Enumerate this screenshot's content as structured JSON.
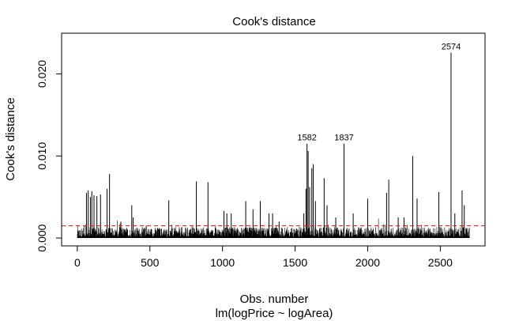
{
  "chart_data": {
    "type": "bar",
    "title": "Cook's distance",
    "xlabel": "Obs. number",
    "subtitle": "lm(logPrice ~ logArea)",
    "ylabel": "Cook's distance",
    "n_obs": 2700,
    "xlim": [
      0,
      2700
    ],
    "ylim": [
      0,
      0.024
    ],
    "x_ticks": [
      0,
      500,
      1000,
      1500,
      2000,
      2500
    ],
    "y_ticks": [
      0.0,
      0.01,
      0.02
    ],
    "y_tick_labels": [
      "0.000",
      "0.010",
      "0.020"
    ],
    "threshold": 0.00148,
    "threshold_color": "#ff0000",
    "bar_color": "#000000",
    "labeled_points": [
      {
        "x": 1582,
        "y": 0.0115,
        "label": "1582"
      },
      {
        "x": 1837,
        "y": 0.0115,
        "label": "1837"
      },
      {
        "x": 2574,
        "y": 0.0226,
        "label": "2574"
      }
    ],
    "spikes": [
      {
        "x": 63,
        "y": 0.0055
      },
      {
        "x": 75,
        "y": 0.0058
      },
      {
        "x": 90,
        "y": 0.005
      },
      {
        "x": 100,
        "y": 0.0057
      },
      {
        "x": 115,
        "y": 0.0052
      },
      {
        "x": 135,
        "y": 0.0051
      },
      {
        "x": 160,
        "y": 0.0053
      },
      {
        "x": 205,
        "y": 0.006
      },
      {
        "x": 222,
        "y": 0.0078
      },
      {
        "x": 300,
        "y": 0.002
      },
      {
        "x": 375,
        "y": 0.004
      },
      {
        "x": 385,
        "y": 0.0025
      },
      {
        "x": 475,
        "y": 0.0015
      },
      {
        "x": 630,
        "y": 0.0046
      },
      {
        "x": 820,
        "y": 0.0069
      },
      {
        "x": 900,
        "y": 0.0068
      },
      {
        "x": 1010,
        "y": 0.0033
      },
      {
        "x": 1030,
        "y": 0.003
      },
      {
        "x": 1060,
        "y": 0.003
      },
      {
        "x": 1160,
        "y": 0.0045
      },
      {
        "x": 1210,
        "y": 0.0035
      },
      {
        "x": 1260,
        "y": 0.0045
      },
      {
        "x": 1320,
        "y": 0.003
      },
      {
        "x": 1345,
        "y": 0.003
      },
      {
        "x": 1390,
        "y": 0.002
      },
      {
        "x": 1560,
        "y": 0.003
      },
      {
        "x": 1575,
        "y": 0.006
      },
      {
        "x": 1590,
        "y": 0.0106
      },
      {
        "x": 1600,
        "y": 0.0062
      },
      {
        "x": 1615,
        "y": 0.0085
      },
      {
        "x": 1625,
        "y": 0.009
      },
      {
        "x": 1640,
        "y": 0.0045
      },
      {
        "x": 1700,
        "y": 0.0073
      },
      {
        "x": 1720,
        "y": 0.004
      },
      {
        "x": 1780,
        "y": 0.0025
      },
      {
        "x": 1900,
        "y": 0.003
      },
      {
        "x": 2000,
        "y": 0.0048
      },
      {
        "x": 2130,
        "y": 0.0055
      },
      {
        "x": 2145,
        "y": 0.0071
      },
      {
        "x": 2210,
        "y": 0.0025
      },
      {
        "x": 2250,
        "y": 0.0025
      },
      {
        "x": 2310,
        "y": 0.01
      },
      {
        "x": 2340,
        "y": 0.0048
      },
      {
        "x": 2490,
        "y": 0.0056
      },
      {
        "x": 2600,
        "y": 0.003
      },
      {
        "x": 2650,
        "y": 0.0058
      },
      {
        "x": 2665,
        "y": 0.004
      }
    ]
  }
}
